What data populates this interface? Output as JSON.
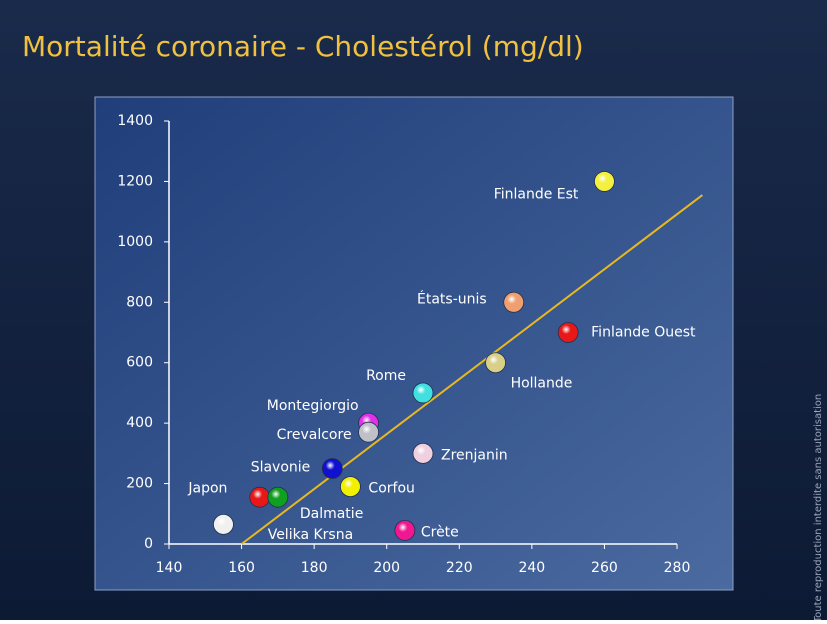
{
  "chart_data": {
    "type": "scatter",
    "title": "Mortalité coronaire - Cholestérol (mg/dl)",
    "side_note": "Toute reproduction interdite sans autorisation",
    "point_labels": [
      "Finlande Est",
      "États-unis",
      "Finlande Ouest",
      "Hollande",
      "Rome",
      "Montegiorgio",
      "Crevalcore",
      "Zrenjanin",
      "Slavonie",
      "Corfou",
      "Japon",
      "Velika Krsna",
      "Dalmatie",
      "Crète"
    ],
    "x": [
      260,
      235,
      250,
      230,
      210,
      195,
      195,
      210,
      185,
      190,
      155,
      165,
      170,
      205
    ],
    "values": [
      1200,
      800,
      700,
      600,
      500,
      400,
      370,
      300,
      250,
      190,
      65,
      155,
      155,
      45
    ],
    "colors": [
      "#f4f040",
      "#f0a070",
      "#e81818",
      "#d8d088",
      "#40e0e0",
      "#e030e8",
      "#c0c0c8",
      "#f0d0e0",
      "#1010d0",
      "#f0f000",
      "#f0f0f0",
      "#e81818",
      "#10a020",
      "#f01890"
    ],
    "trend_line": {
      "x": [
        160,
        287
      ],
      "values": [
        0,
        1155
      ],
      "color": "#e8b820"
    },
    "xlim": [
      140,
      280
    ],
    "xticks": [
      140,
      160,
      180,
      200,
      220,
      240,
      260,
      280
    ],
    "ylim": [
      0,
      1400
    ],
    "yticks": [
      0,
      200,
      400,
      600,
      800,
      1000,
      1200,
      1400
    ]
  }
}
